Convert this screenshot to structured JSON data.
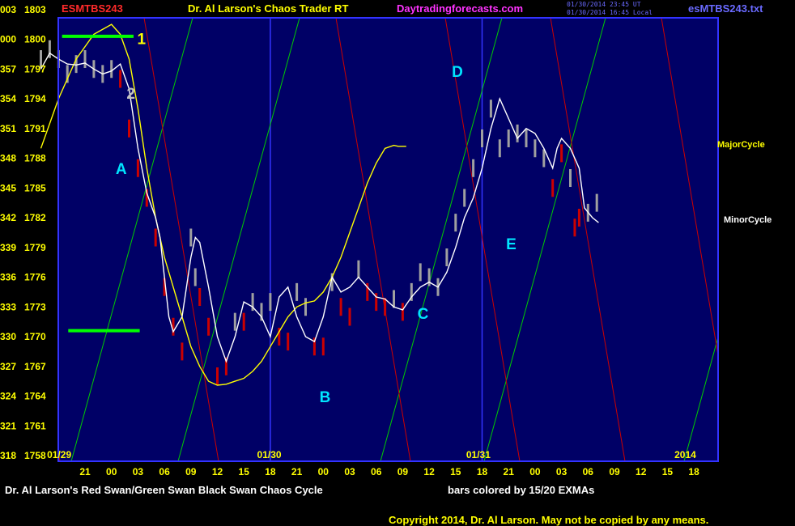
{
  "header": {
    "symbol": "ESMTBS243",
    "title": "Dr. Al Larson's Chaos Trader RT",
    "site": "Daytradingforecasts.com",
    "timestamp1": "01/30/2014 23:45 UT",
    "timestamp2": "01/30/2014 16:45 Local",
    "file": "esMTBS243.txt"
  },
  "side_labels": {
    "major": "MajorCycle",
    "minor": "MinorCycle"
  },
  "footer": {
    "left": "Dr. Al Larson's Red Swan/Green Swan Black Swan Chaos Cycle",
    "center": "bars colored by 15/20 EXMAs",
    "copyright": "Copyright 2014, Dr. Al Larson. May not be copied by any means."
  },
  "colors": {
    "plot_bg": "#000066",
    "frame": "#3333ff",
    "axis_text": "#ffff00",
    "bar_up": "#a0a0a0",
    "bar_down": "#cc0000",
    "major_cycle": "#ffff00",
    "minor_cycle": "#ffffff",
    "swan_red": "#cc0000",
    "swan_green": "#00cc00",
    "marker": "#00ff00",
    "wave_labels": "#00e5ff"
  },
  "chart_data": {
    "type": "line",
    "title": "Dr. Al Larson's Chaos Trader RT",
    "xlabel": "",
    "ylabel": "",
    "grid": false,
    "ylim": [
      1758,
      1806
    ],
    "y_ticks": [
      {
        "left": "318",
        "right": "1758",
        "v": 1758
      },
      {
        "left": "321",
        "right": "1761",
        "v": 1761
      },
      {
        "left": "324",
        "right": "1764",
        "v": 1764
      },
      {
        "left": "327",
        "right": "1767",
        "v": 1767
      },
      {
        "left": "330",
        "right": "1770",
        "v": 1770
      },
      {
        "left": "333",
        "right": "1773",
        "v": 1773
      },
      {
        "left": "336",
        "right": "1776",
        "v": 1776
      },
      {
        "left": "339",
        "right": "1779",
        "v": 1779
      },
      {
        "left": "342",
        "right": "1782",
        "v": 1782
      },
      {
        "left": "345",
        "right": "1785",
        "v": 1785
      },
      {
        "left": "348",
        "right": "1788",
        "v": 1788
      },
      {
        "left": "351",
        "right": "1791",
        "v": 1791
      },
      {
        "left": "354",
        "right": "1794",
        "v": 1794
      },
      {
        "left": "357",
        "right": "1797",
        "v": 1797
      },
      {
        "left": "000",
        "right": "1800",
        "v": 1800
      },
      {
        "left": "003",
        "right": "1803",
        "v": 1803
      }
    ],
    "x_range": [
      -5,
      71
    ],
    "x_ticks": [
      {
        "label": "21",
        "h": 0
      },
      {
        "label": "00",
        "h": 3
      },
      {
        "label": "03",
        "h": 6
      },
      {
        "label": "06",
        "h": 9
      },
      {
        "label": "09",
        "h": 12
      },
      {
        "label": "12",
        "h": 15
      },
      {
        "label": "15",
        "h": 18
      },
      {
        "label": "18",
        "h": 21
      },
      {
        "label": "21",
        "h": 24
      },
      {
        "label": "00",
        "h": 27
      },
      {
        "label": "03",
        "h": 30
      },
      {
        "label": "06",
        "h": 33
      },
      {
        "label": "09",
        "h": 36
      },
      {
        "label": "12",
        "h": 39
      },
      {
        "label": "15",
        "h": 42
      },
      {
        "label": "18",
        "h": 45
      },
      {
        "label": "21",
        "h": 48
      },
      {
        "label": "00",
        "h": 51
      },
      {
        "label": "03",
        "h": 54
      },
      {
        "label": "06",
        "h": 57
      },
      {
        "label": "09",
        "h": 60
      },
      {
        "label": "12",
        "h": 63
      },
      {
        "label": "15",
        "h": 66
      },
      {
        "label": "18",
        "h": 69
      }
    ],
    "date_labels": [
      {
        "label": "01/29",
        "h": -4.3
      },
      {
        "label": "01/30",
        "h": 19.5
      },
      {
        "label": "01/31",
        "h": 43.2
      },
      {
        "label": "2014",
        "h": 66.8
      }
    ],
    "day_separators": [
      21,
      45
    ],
    "series": [
      {
        "name": "MajorCycle",
        "role": "major",
        "points": [
          [
            -5,
            1789
          ],
          [
            -3,
            1794
          ],
          [
            -1,
            1798
          ],
          [
            1,
            1800.5
          ],
          [
            3,
            1801.5
          ],
          [
            4,
            1800.5
          ],
          [
            5,
            1798
          ],
          [
            6,
            1793
          ],
          [
            7,
            1787
          ],
          [
            8,
            1782
          ],
          [
            9,
            1778
          ],
          [
            10,
            1775
          ],
          [
            11,
            1772
          ],
          [
            12,
            1769
          ],
          [
            13,
            1767
          ],
          [
            14,
            1765.5
          ],
          [
            15,
            1765.1
          ],
          [
            16,
            1765.2
          ],
          [
            17,
            1765.5
          ],
          [
            18,
            1765.8
          ],
          [
            19,
            1766.5
          ],
          [
            20,
            1767.5
          ],
          [
            21,
            1769
          ],
          [
            22,
            1770.5
          ],
          [
            23,
            1772
          ],
          [
            24,
            1773
          ],
          [
            25,
            1773.4
          ],
          [
            26,
            1773.6
          ],
          [
            27,
            1774.5
          ],
          [
            28,
            1776
          ],
          [
            29,
            1778
          ],
          [
            30,
            1780.5
          ],
          [
            31,
            1783
          ],
          [
            32,
            1785.5
          ],
          [
            33,
            1787.5
          ],
          [
            34,
            1789
          ],
          [
            35,
            1789.3
          ],
          [
            35.5,
            1789.2
          ],
          [
            36.4,
            1789.2
          ]
        ]
      },
      {
        "name": "MinorCycle",
        "role": "minor",
        "points": [
          [
            -5,
            1797
          ],
          [
            -4,
            1798.6
          ],
          [
            -3,
            1798
          ],
          [
            -2,
            1797.5
          ],
          [
            -1,
            1797.4
          ],
          [
            0,
            1797.6
          ],
          [
            1,
            1797
          ],
          [
            2,
            1796.5
          ],
          [
            3,
            1796.8
          ],
          [
            4,
            1797.5
          ],
          [
            5,
            1795
          ],
          [
            6,
            1789
          ],
          [
            7,
            1784.5
          ],
          [
            8,
            1782
          ],
          [
            8.5,
            1780
          ],
          [
            9,
            1776
          ],
          [
            9.5,
            1772
          ],
          [
            10,
            1770.5
          ],
          [
            11,
            1772
          ],
          [
            12,
            1778
          ],
          [
            12.5,
            1780
          ],
          [
            13,
            1779.5
          ],
          [
            14,
            1775
          ],
          [
            15,
            1770
          ],
          [
            16,
            1767.5
          ],
          [
            17,
            1770
          ],
          [
            18,
            1773.5
          ],
          [
            19,
            1773
          ],
          [
            20,
            1772
          ],
          [
            21,
            1770
          ],
          [
            22,
            1774
          ],
          [
            23,
            1775
          ],
          [
            24,
            1772
          ],
          [
            25,
            1770
          ],
          [
            26,
            1769.5
          ],
          [
            27,
            1772
          ],
          [
            28,
            1776
          ],
          [
            29,
            1774.5
          ],
          [
            30,
            1775
          ],
          [
            31,
            1776
          ],
          [
            32,
            1775
          ],
          [
            33,
            1774
          ],
          [
            34,
            1773.8
          ],
          [
            35,
            1773
          ],
          [
            36,
            1772.7
          ],
          [
            37,
            1774
          ],
          [
            38,
            1775
          ],
          [
            39,
            1775.5
          ],
          [
            40,
            1775
          ],
          [
            41,
            1776.5
          ],
          [
            42,
            1779
          ],
          [
            43,
            1782
          ],
          [
            44,
            1784
          ],
          [
            45,
            1787
          ],
          [
            46,
            1791
          ],
          [
            47,
            1794
          ],
          [
            48,
            1792
          ],
          [
            49,
            1790
          ],
          [
            50,
            1791
          ],
          [
            51,
            1790.5
          ],
          [
            52,
            1789
          ],
          [
            53,
            1787
          ],
          [
            53.5,
            1789
          ],
          [
            54,
            1790
          ],
          [
            55,
            1789
          ],
          [
            56,
            1787
          ],
          [
            56.6,
            1783
          ],
          [
            57.5,
            1782
          ],
          [
            58.2,
            1781.5
          ]
        ]
      },
      {
        "name": "bars_up",
        "role": "up",
        "points": [
          [
            -5,
            1798
          ],
          [
            -4,
            1799
          ],
          [
            -3,
            1798
          ],
          [
            -2,
            1796.5
          ],
          [
            -1,
            1797.5
          ],
          [
            0,
            1798
          ],
          [
            1,
            1797
          ],
          [
            2,
            1796.5
          ],
          [
            3,
            1797
          ],
          [
            12,
            1780
          ],
          [
            12.5,
            1776
          ],
          [
            17,
            1771.5
          ],
          [
            19,
            1773.5
          ],
          [
            20,
            1772.5
          ],
          [
            21,
            1773.5
          ],
          [
            24,
            1774.5
          ],
          [
            25,
            1773
          ],
          [
            28,
            1775.5
          ],
          [
            31,
            1776.8
          ],
          [
            35,
            1773.8
          ],
          [
            37,
            1774.5
          ],
          [
            38,
            1776.5
          ],
          [
            39,
            1776
          ],
          [
            40,
            1775
          ],
          [
            41,
            1778
          ],
          [
            42,
            1781.5
          ],
          [
            43,
            1784
          ],
          [
            44,
            1787
          ],
          [
            45,
            1790
          ],
          [
            46,
            1793
          ],
          [
            47,
            1789
          ],
          [
            48,
            1790
          ],
          [
            49,
            1790.5
          ],
          [
            50,
            1790
          ],
          [
            51,
            1789
          ],
          [
            52,
            1788
          ],
          [
            55,
            1786
          ],
          [
            57,
            1782.5
          ],
          [
            58,
            1783.5
          ]
        ]
      },
      {
        "name": "bars_down",
        "role": "down",
        "points": [
          [
            4,
            1796
          ],
          [
            5,
            1791
          ],
          [
            6,
            1787
          ],
          [
            7,
            1784
          ],
          [
            8,
            1780
          ],
          [
            9,
            1775
          ],
          [
            10,
            1771
          ],
          [
            11,
            1768.5
          ],
          [
            13,
            1774
          ],
          [
            14,
            1771
          ],
          [
            15,
            1766
          ],
          [
            16,
            1767
          ],
          [
            18,
            1771.5
          ],
          [
            22,
            1770
          ],
          [
            23,
            1769.5
          ],
          [
            26,
            1769
          ],
          [
            27,
            1769
          ],
          [
            29,
            1773
          ],
          [
            30,
            1772
          ],
          [
            32,
            1774.5
          ],
          [
            33,
            1773.5
          ],
          [
            34,
            1773
          ],
          [
            36,
            1772.5
          ],
          [
            53,
            1785
          ],
          [
            54,
            1788.5
          ],
          [
            55.5,
            1781
          ],
          [
            56,
            1782
          ]
        ]
      }
    ],
    "wave_labels": [
      {
        "label": "1",
        "h": 6.4,
        "v": 1799.5,
        "color": "#ffff00"
      },
      {
        "label": "2",
        "h": 5.2,
        "v": 1794,
        "color": "#c0c0c0"
      },
      {
        "label": "A",
        "h": 4.1,
        "v": 1786.4,
        "color": "#00e5ff"
      },
      {
        "label": "B",
        "h": 27.2,
        "v": 1763.4,
        "color": "#00e5ff"
      },
      {
        "label": "C",
        "h": 38.3,
        "v": 1771.8,
        "color": "#00e5ff"
      },
      {
        "label": "D",
        "h": 42.2,
        "v": 1796.2,
        "color": "#00e5ff"
      },
      {
        "label": "E",
        "h": 48.3,
        "v": 1778.8,
        "color": "#00e5ff"
      }
    ]
  }
}
